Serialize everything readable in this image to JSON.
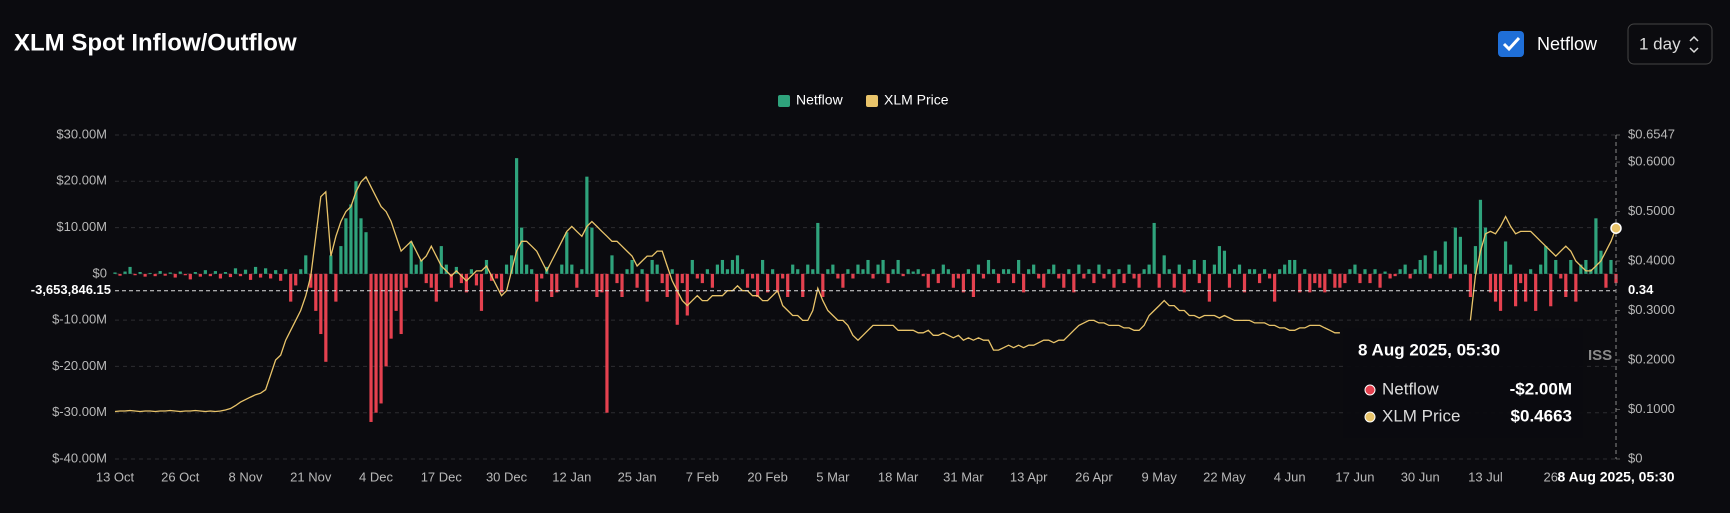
{
  "header": {
    "title": "XLM Spot Inflow/Outflow"
  },
  "controls": {
    "checkbox": "Netflow",
    "interval": "1 day"
  },
  "chart_data": {
    "type": "bar",
    "grid": true,
    "categories": [
      "13 Oct",
      null,
      null,
      null,
      null,
      null,
      null,
      null,
      null,
      null,
      null,
      null,
      null,
      "26 Oct",
      null,
      null,
      null,
      null,
      null,
      null,
      null,
      null,
      null,
      null,
      null,
      null,
      "8 Nov",
      null,
      null,
      null,
      null,
      null,
      null,
      null,
      null,
      null,
      null,
      null,
      null,
      "21 Nov",
      null,
      null,
      null,
      null,
      null,
      null,
      null,
      null,
      null,
      null,
      null,
      null,
      "4 Dec",
      null,
      null,
      null,
      null,
      null,
      null,
      null,
      null,
      null,
      null,
      null,
      null,
      "17 Dec",
      null,
      null,
      null,
      null,
      null,
      null,
      null,
      null,
      null,
      null,
      null,
      null,
      "30 Dec",
      null,
      null,
      null,
      null,
      null,
      null,
      null,
      null,
      null,
      null,
      null,
      null,
      "12 Jan",
      null,
      null,
      null,
      null,
      null,
      null,
      null,
      null,
      null,
      null,
      null,
      null,
      "25 Jan",
      null,
      null,
      null,
      null,
      null,
      null,
      null,
      null,
      null,
      null,
      null,
      null,
      "7 Feb",
      null,
      null,
      null,
      null,
      null,
      null,
      null,
      null,
      null,
      null,
      null,
      null,
      "20 Feb",
      null,
      null,
      null,
      null,
      null,
      null,
      null,
      null,
      null,
      null,
      null,
      null,
      "5 Mar",
      null,
      null,
      null,
      null,
      null,
      null,
      null,
      null,
      null,
      null,
      null,
      null,
      "18 Mar",
      null,
      null,
      null,
      null,
      null,
      null,
      null,
      null,
      null,
      null,
      null,
      null,
      "31 Mar",
      null,
      null,
      null,
      null,
      null,
      null,
      null,
      null,
      null,
      null,
      null,
      null,
      "13 Apr",
      null,
      null,
      null,
      null,
      null,
      null,
      null,
      null,
      null,
      null,
      null,
      null,
      "26 Apr",
      null,
      null,
      null,
      null,
      null,
      null,
      null,
      null,
      null,
      null,
      null,
      null,
      "9 May",
      null,
      null,
      null,
      null,
      null,
      null,
      null,
      null,
      null,
      null,
      null,
      null,
      "22 May",
      null,
      null,
      null,
      null,
      null,
      null,
      null,
      null,
      null,
      null,
      null,
      null,
      "4 Jun",
      null,
      null,
      null,
      null,
      null,
      null,
      null,
      null,
      null,
      null,
      null,
      null,
      "17 Jun",
      null,
      null,
      null,
      null,
      null,
      null,
      null,
      null,
      null,
      null,
      null,
      null,
      "30 Jun",
      null,
      null,
      null,
      null,
      null,
      null,
      null,
      null,
      null,
      null,
      null,
      null,
      "13 Jul",
      null,
      null,
      null,
      null,
      null,
      null,
      null,
      null,
      null,
      null,
      null,
      null,
      "26",
      null,
      null,
      null,
      null,
      null,
      null,
      null,
      null,
      null,
      null,
      null,
      null,
      "8 Aug 2025, 05:30"
    ],
    "series": [
      {
        "name": "Netflow",
        "color": "#2fa37c",
        "negative_color": "#e5414f",
        "values": [
          0.3,
          -0.4,
          0.5,
          1.5,
          -0.3,
          0.4,
          -0.6,
          0.2,
          -0.5,
          0.6,
          -0.4,
          0.3,
          -0.8,
          0.5,
          -0.3,
          -1.2,
          0.4,
          -0.6,
          0.8,
          -0.5,
          0.6,
          -1.0,
          0.4,
          -0.7,
          1.2,
          -0.5,
          0.9,
          -1.3,
          1.5,
          -0.8,
          1.2,
          -1.0,
          0.8,
          -1.5,
          1.0,
          -6.0,
          -2.5,
          1.0,
          4.0,
          -3.0,
          -8.0,
          -13.0,
          -19.0,
          4.0,
          -6.0,
          6.0,
          12.0,
          15.0,
          20.0,
          12.0,
          9.0,
          -32.0,
          -30.0,
          -28.0,
          -20.0,
          -14.0,
          -8.0,
          -13.0,
          -3.0,
          7.0,
          2.0,
          3.0,
          -2.0,
          -3.0,
          -6.0,
          6.0,
          2.0,
          -3.0,
          1.5,
          -2.0,
          -4.0,
          1.0,
          -2.5,
          -8.0,
          3.0,
          -1.5,
          -1.0,
          -4.0,
          2.0,
          4.0,
          25.0,
          10.0,
          2.0,
          1.0,
          -6.0,
          -1.0,
          1.5,
          -5.0,
          -4.0,
          2.0,
          9.0,
          2.0,
          -3.0,
          1.0,
          21.0,
          10.0,
          -5.0,
          -4.0,
          -30.0,
          4.0,
          -2.0,
          -5.0,
          1.0,
          3.0,
          -3.0,
          1.0,
          -6.0,
          3.0,
          2.0,
          -2.0,
          -5.0,
          1.0,
          -11.0,
          -2.0,
          -9.0,
          3.0,
          -1.0,
          -2.0,
          1.0,
          -3.0,
          2.0,
          3.0,
          1.0,
          3.0,
          4.0,
          1.0,
          -3.0,
          -1.0,
          -5.0,
          3.0,
          -4.0,
          1.0,
          -4.0,
          -1.0,
          -5.0,
          2.0,
          1.0,
          -5.0,
          2.0,
          1.0,
          11.0,
          -5.0,
          1.0,
          2.0,
          -1.0,
          -3.0,
          1.0,
          -1.0,
          2.0,
          1.0,
          3.0,
          -1.0,
          2.0,
          3.0,
          -2.0,
          1.0,
          3.0,
          -0.5,
          1.0,
          0.5,
          1.0,
          -0.5,
          -3.0,
          1.0,
          -2.0,
          2.0,
          1.0,
          -3.0,
          -1.0,
          -4.0,
          1.0,
          -5.0,
          2.0,
          -1.0,
          3.0,
          1.0,
          -2.0,
          1.0,
          1.0,
          -2.0,
          3.0,
          -4.0,
          1.0,
          2.0,
          -1.0,
          -3.0,
          1.0,
          2.0,
          -1.0,
          -3.0,
          1.0,
          -4.0,
          2.0,
          -1.0,
          1.0,
          -2.0,
          2.0,
          -1.0,
          1.0,
          -3.0,
          1.0,
          -2.0,
          2.0,
          -1.0,
          -3.0,
          1.0,
          2.0,
          11.0,
          -3.0,
          4.0,
          1.0,
          -3.0,
          2.0,
          -4.0,
          1.0,
          3.0,
          -2.0,
          3.0,
          -6.0,
          2.0,
          6.0,
          5.0,
          -3.0,
          1.0,
          2.0,
          -4.0,
          1.0,
          1.0,
          -2.0,
          1.0,
          -1.0,
          -6.0,
          1.0,
          2.0,
          3.0,
          3.0,
          -4.0,
          1.0,
          -4.0,
          -2.0,
          -3.0,
          -4.0,
          1.0,
          -3.0,
          -3.0,
          -2.0,
          1.0,
          2.0,
          -2.0,
          1.0,
          -2.0,
          1.0,
          -3.0,
          0.5,
          -1.0,
          -0.5,
          1.0,
          2.0,
          -1.0,
          1.0,
          3.0,
          4.0,
          -1.0,
          5.0,
          2.0,
          7.0,
          -1.0,
          10.0,
          8.0,
          2.0,
          -5.0,
          6.0,
          16.0,
          10.0,
          -4.0,
          -6.0,
          -8.0,
          7.0,
          2.0,
          -7.0,
          -2.0,
          -6.0,
          1.0,
          -8.0,
          2.0,
          6.0,
          -7.0,
          3.0,
          -1.0,
          -5.0,
          3.0,
          -6.0,
          2.0,
          3.0,
          1.0,
          12.0,
          5.0,
          -3.0,
          3.0,
          -2.0
        ]
      },
      {
        "name": "XLM Price",
        "color": "#e9c46a",
        "axis": "y2",
        "values": [
          0.096,
          0.097,
          0.097,
          0.098,
          0.097,
          0.096,
          0.097,
          0.097,
          0.096,
          0.097,
          0.097,
          0.098,
          0.097,
          0.096,
          0.097,
          0.097,
          0.098,
          0.097,
          0.096,
          0.097,
          0.096,
          0.097,
          0.099,
          0.102,
          0.108,
          0.115,
          0.12,
          0.125,
          0.13,
          0.133,
          0.14,
          0.17,
          0.2,
          0.21,
          0.24,
          0.26,
          0.28,
          0.3,
          0.33,
          0.37,
          0.45,
          0.53,
          0.54,
          0.41,
          0.45,
          0.48,
          0.5,
          0.51,
          0.54,
          0.56,
          0.57,
          0.55,
          0.53,
          0.51,
          0.5,
          0.48,
          0.45,
          0.42,
          0.43,
          0.44,
          0.42,
          0.4,
          0.41,
          0.43,
          0.41,
          0.39,
          0.38,
          0.37,
          0.38,
          0.37,
          0.36,
          0.37,
          0.38,
          0.38,
          0.39,
          0.37,
          0.35,
          0.33,
          0.34,
          0.38,
          0.42,
          0.44,
          0.44,
          0.43,
          0.42,
          0.4,
          0.38,
          0.4,
          0.42,
          0.44,
          0.46,
          0.47,
          0.46,
          0.45,
          0.47,
          0.48,
          0.47,
          0.46,
          0.45,
          0.44,
          0.44,
          0.43,
          0.42,
          0.41,
          0.39,
          0.4,
          0.41,
          0.41,
          0.42,
          0.42,
          0.39,
          0.36,
          0.34,
          0.32,
          0.31,
          0.32,
          0.33,
          0.32,
          0.32,
          0.33,
          0.33,
          0.33,
          0.34,
          0.34,
          0.35,
          0.34,
          0.34,
          0.33,
          0.33,
          0.32,
          0.32,
          0.33,
          0.34,
          0.31,
          0.3,
          0.29,
          0.29,
          0.28,
          0.28,
          0.3,
          0.345,
          0.32,
          0.3,
          0.29,
          0.28,
          0.28,
          0.27,
          0.25,
          0.24,
          0.25,
          0.26,
          0.27,
          0.27,
          0.27,
          0.27,
          0.27,
          0.26,
          0.26,
          0.26,
          0.26,
          0.255,
          0.255,
          0.26,
          0.25,
          0.25,
          0.255,
          0.25,
          0.245,
          0.25,
          0.24,
          0.245,
          0.24,
          0.245,
          0.24,
          0.24,
          0.22,
          0.22,
          0.225,
          0.23,
          0.225,
          0.23,
          0.225,
          0.23,
          0.23,
          0.235,
          0.24,
          0.24,
          0.235,
          0.24,
          0.24,
          0.25,
          0.26,
          0.27,
          0.275,
          0.28,
          0.28,
          0.275,
          0.275,
          0.27,
          0.27,
          0.27,
          0.265,
          0.265,
          0.26,
          0.26,
          0.27,
          0.29,
          0.3,
          0.31,
          0.32,
          0.31,
          0.31,
          0.3,
          0.3,
          0.29,
          0.29,
          0.285,
          0.29,
          0.29,
          0.29,
          0.285,
          0.29,
          0.285,
          0.28,
          0.28,
          0.28,
          0.28,
          0.275,
          0.275,
          0.275,
          0.27,
          0.27,
          0.265,
          0.265,
          0.26,
          0.26,
          0.265,
          0.265,
          0.27,
          0.27,
          0.27,
          0.265,
          0.26,
          0.255,
          0.255,
          null,
          null,
          null,
          null,
          null,
          null,
          null,
          null,
          null,
          null,
          null,
          null,
          null,
          null,
          null,
          null,
          null,
          null,
          null,
          null,
          null,
          null,
          null,
          null,
          null,
          0.28,
          0.37,
          0.42,
          0.455,
          0.46,
          0.455,
          0.47,
          0.49,
          0.47,
          0.455,
          0.46,
          0.46,
          0.46,
          0.45,
          0.44,
          0.43,
          0.42,
          0.41,
          0.42,
          0.43,
          0.42,
          0.4,
          0.39,
          0.38,
          0.38,
          0.39,
          0.4,
          0.42,
          0.44,
          0.4663
        ]
      }
    ],
    "ylim": [
      -40,
      30
    ],
    "yticks": [
      {
        "value": 30,
        "label": "$30.00M"
      },
      {
        "value": 20,
        "label": "$20.00M"
      },
      {
        "value": 10,
        "label": "$10.00M"
      },
      {
        "value": 0,
        "label": "$0"
      },
      {
        "value": -10,
        "label": "$-10.00M"
      },
      {
        "value": -20,
        "label": "$-20.00M"
      },
      {
        "value": -30,
        "label": "$-30.00M"
      },
      {
        "value": -40,
        "label": "$-40.00M"
      }
    ],
    "y2lim": [
      0,
      0.6547
    ],
    "y2ticks": [
      {
        "value": 0.6547,
        "label": "$0.6547"
      },
      {
        "value": 0.6,
        "label": "$0.6000"
      },
      {
        "value": 0.5,
        "label": "$0.5000"
      },
      {
        "value": 0.4,
        "label": "$0.4000"
      },
      {
        "value": 0.3,
        "label": "$0.3000"
      },
      {
        "value": 0.2,
        "label": "$0.2000"
      },
      {
        "value": 0.1,
        "label": "$0.1000"
      },
      {
        "value": 0,
        "label": "$0"
      }
    ],
    "crosshair": {
      "y": {
        "value": -3.65384615,
        "label": "-3,653,846.15"
      },
      "y2": 0.34
    },
    "tooltip": {
      "labels": [
        "-$2.00M",
        "$0.4663"
      ]
    },
    "watermark": "ISS"
  }
}
